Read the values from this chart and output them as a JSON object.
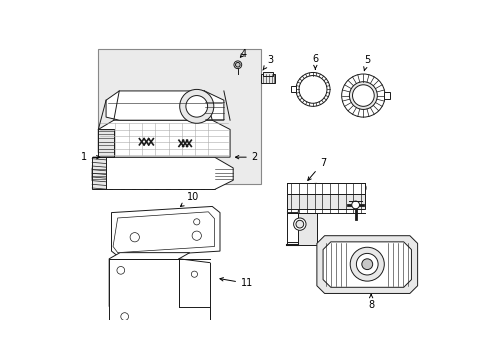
{
  "bg_color": "#ffffff",
  "fig_width": 4.89,
  "fig_height": 3.6,
  "dpi": 100,
  "line_color": "#1a1a1a",
  "shade_color": "#c8c8c8",
  "light_shade": "#e8e8e8",
  "box_bg": "#ebebeb",
  "label_fontsize": 7
}
